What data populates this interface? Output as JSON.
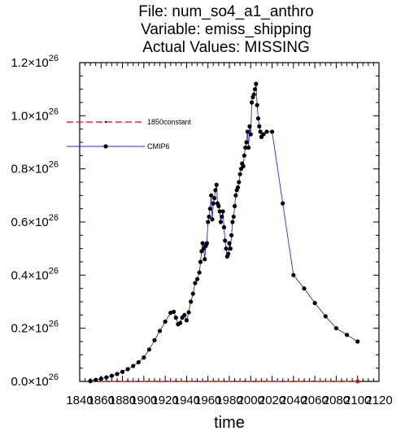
{
  "chart_data": {
    "type": "line",
    "title_lines": [
      "File: num_so4_a1_anthro",
      "Variable: emiss_shipping",
      "Actual Values: MISSING"
    ],
    "xlabel": "time",
    "ylabel": "",
    "xlim": [
      1840,
      2120
    ],
    "ylim": [
      0,
      1.2e+26
    ],
    "x_ticks": [
      1840,
      1860,
      1880,
      1900,
      1920,
      1940,
      1960,
      1980,
      2000,
      2020,
      2040,
      2060,
      2080,
      2100,
      2120
    ],
    "y_ticks": [
      {
        "value": 0.0,
        "mantissa": "0.0",
        "exp": "26"
      },
      {
        "value": 2e+25,
        "mantissa": "0.2",
        "exp": "26"
      },
      {
        "value": 4e+25,
        "mantissa": "0.4",
        "exp": "26"
      },
      {
        "value": 6e+25,
        "mantissa": "0.6",
        "exp": "26"
      },
      {
        "value": 8e+25,
        "mantissa": "0.8",
        "exp": "26"
      },
      {
        "value": 1e+26,
        "mantissa": "1.0",
        "exp": "26"
      },
      {
        "value": 1.2e+26,
        "mantissa": "1.2",
        "exp": "26"
      }
    ],
    "legend_placement": "top-left",
    "series": [
      {
        "name": "1850constant",
        "color": "#e03030",
        "style": "dashed",
        "x": [
          1850,
          2100
        ],
        "y": [
          0,
          0
        ]
      },
      {
        "name": "CMIP6",
        "color": "#2a2ad0",
        "style": "solid",
        "x": [
          1850,
          1855,
          1860,
          1865,
          1870,
          1875,
          1880,
          1885,
          1890,
          1895,
          1900,
          1905,
          1910,
          1915,
          1920,
          1925,
          1928,
          1930,
          1932,
          1934,
          1936,
          1938,
          1940,
          1942,
          1944,
          1946,
          1948,
          1950,
          1952,
          1953,
          1954,
          1955,
          1956,
          1957,
          1958,
          1959,
          1960,
          1961,
          1962,
          1963,
          1964,
          1965,
          1966,
          1967,
          1968,
          1969,
          1970,
          1971,
          1972,
          1973,
          1974,
          1975,
          1976,
          1977,
          1978,
          1979,
          1980,
          1981,
          1982,
          1983,
          1984,
          1985,
          1986,
          1987,
          1988,
          1989,
          1990,
          1991,
          1992,
          1993,
          1994,
          1995,
          1996,
          1997,
          1998,
          1999,
          2000,
          2001,
          2002,
          2003,
          2004,
          2005,
          2006,
          2007,
          2008,
          2009,
          2010,
          2012,
          2015,
          2020,
          2030,
          2040,
          2050,
          2060,
          2070,
          2080,
          2090,
          2100
        ],
        "y": [
          2e+23,
          6e+23,
          1e+24,
          1.5e+24,
          2.1e+24,
          2.8e+24,
          3.6e+24,
          4.6e+24,
          5.8e+24,
          7.2e+24,
          9e+24,
          1.2e+25,
          1.55e+25,
          1.9e+25,
          2.25e+25,
          2.58e+25,
          2.62e+25,
          2.4e+25,
          2.15e+25,
          2.2e+25,
          2.4e+25,
          2.5e+25,
          2.3e+25,
          2.6e+25,
          3e+25,
          3.3e+25,
          3.7e+25,
          3.85e+25,
          4.1e+25,
          4.5e+25,
          4.9e+25,
          5.2e+25,
          5e+25,
          4.6e+25,
          5.1e+25,
          5.2e+25,
          6e+25,
          6.2e+25,
          6.5e+25,
          7e+25,
          6.1e+25,
          6.7e+25,
          6.9e+25,
          7.2e+25,
          7.4e+25,
          6.7e+25,
          6.6e+25,
          6.4e+25,
          6e+25,
          6.2e+25,
          6.4e+25,
          5.8e+25,
          5.3e+25,
          5e+25,
          4.7e+25,
          4.8e+25,
          5.2e+25,
          5e+25,
          5.5e+25,
          6e+25,
          6.2e+25,
          6.6e+25,
          7e+25,
          7.2e+25,
          7.3e+25,
          7.5e+25,
          7.8e+25,
          8e+25,
          8.2e+25,
          8.1e+25,
          8.5e+25,
          8.8e+25,
          9e+25,
          9.4e+25,
          8.8e+25,
          9.6e+25,
          9.3e+25,
          1.05e+26,
          1.07e+26,
          1.08e+26,
          1.1e+26,
          1.12e+26,
          1.04e+26,
          9.9e+25,
          9.6e+25,
          9.4e+25,
          9.2e+25,
          9.3e+25,
          9.4e+25,
          9.4e+25,
          6.7e+25,
          4e+25,
          3.5e+25,
          2.95e+25,
          2.45e+25,
          2e+25,
          1.75e+25,
          1.5e+25
        ]
      }
    ]
  }
}
